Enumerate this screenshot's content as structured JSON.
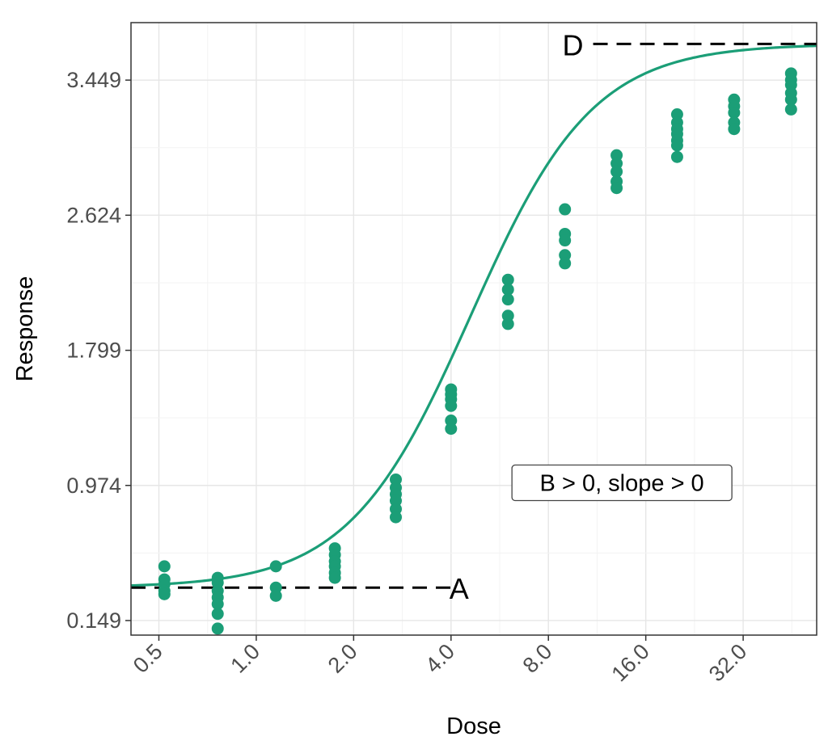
{
  "chart_data": {
    "type": "scatter",
    "title": "",
    "xlabel": "Dose",
    "ylabel": "Response",
    "x_scale": "log2",
    "xlim": [
      0.41,
      54
    ],
    "ylim": [
      0.06,
      3.8
    ],
    "grid": true,
    "x_ticks": [
      {
        "value": 0.5,
        "label": "0.5"
      },
      {
        "value": 1,
        "label": "1.0"
      },
      {
        "value": 2,
        "label": "2.0"
      },
      {
        "value": 4,
        "label": "4.0"
      },
      {
        "value": 8,
        "label": "8.0"
      },
      {
        "value": 16,
        "label": "16.0"
      },
      {
        "value": 32,
        "label": "32.0"
      }
    ],
    "y_ticks": [
      {
        "value": 0.149,
        "label": "0.149"
      },
      {
        "value": 0.974,
        "label": "0.974"
      },
      {
        "value": 1.799,
        "label": "1.799"
      },
      {
        "value": 2.624,
        "label": "2.624"
      },
      {
        "value": 3.449,
        "label": "3.449"
      }
    ],
    "colors": {
      "series": "#1b9e77",
      "reference": "#000000"
    },
    "fitted_curve": {
      "model": "4-parameter log-logistic",
      "A": 0.35,
      "D": 3.67,
      "EC50": 4.6,
      "B": 2.3
    },
    "points": [
      {
        "x": 0.52,
        "y": [
          0.48,
          0.4,
          0.37,
          0.33,
          0.31
        ]
      },
      {
        "x": 0.76,
        "y": [
          0.41,
          0.38,
          0.33,
          0.29,
          0.25,
          0.19,
          0.1
        ]
      },
      {
        "x": 1.15,
        "y": [
          0.48,
          0.35,
          0.3
        ]
      },
      {
        "x": 1.75,
        "y": [
          0.59,
          0.55,
          0.51,
          0.48,
          0.44,
          0.41
        ]
      },
      {
        "x": 2.7,
        "y": [
          1.01,
          0.96,
          0.92,
          0.88,
          0.83,
          0.78
        ]
      },
      {
        "x": 4.0,
        "y": [
          1.56,
          1.53,
          1.5,
          1.46,
          1.37,
          1.32
        ]
      },
      {
        "x": 6.0,
        "y": [
          2.23,
          2.17,
          2.11,
          2.01,
          1.96
        ]
      },
      {
        "x": 9.0,
        "y": [
          2.66,
          2.51,
          2.47,
          2.38,
          2.33
        ]
      },
      {
        "x": 13.0,
        "y": [
          2.99,
          2.94,
          2.89,
          2.83,
          2.79
        ]
      },
      {
        "x": 20.0,
        "y": [
          3.24,
          3.19,
          3.15,
          3.12,
          3.08,
          3.05,
          2.98
        ]
      },
      {
        "x": 30.0,
        "y": [
          3.33,
          3.29,
          3.25,
          3.19,
          3.15
        ]
      },
      {
        "x": 45.0,
        "y": [
          3.49,
          3.45,
          3.42,
          3.37,
          3.33,
          3.27
        ]
      }
    ],
    "annotations": {
      "lower_asymptote": {
        "label": "A",
        "y": 0.35,
        "x_from": 0.41,
        "x_to": 4.0
      },
      "upper_asymptote": {
        "label": "D",
        "y": 3.67,
        "x_from": 11.0,
        "x_to": 54
      },
      "text_box": {
        "text": "B > 0, slope > 0",
        "x": 13.5,
        "y": 0.99
      }
    }
  }
}
